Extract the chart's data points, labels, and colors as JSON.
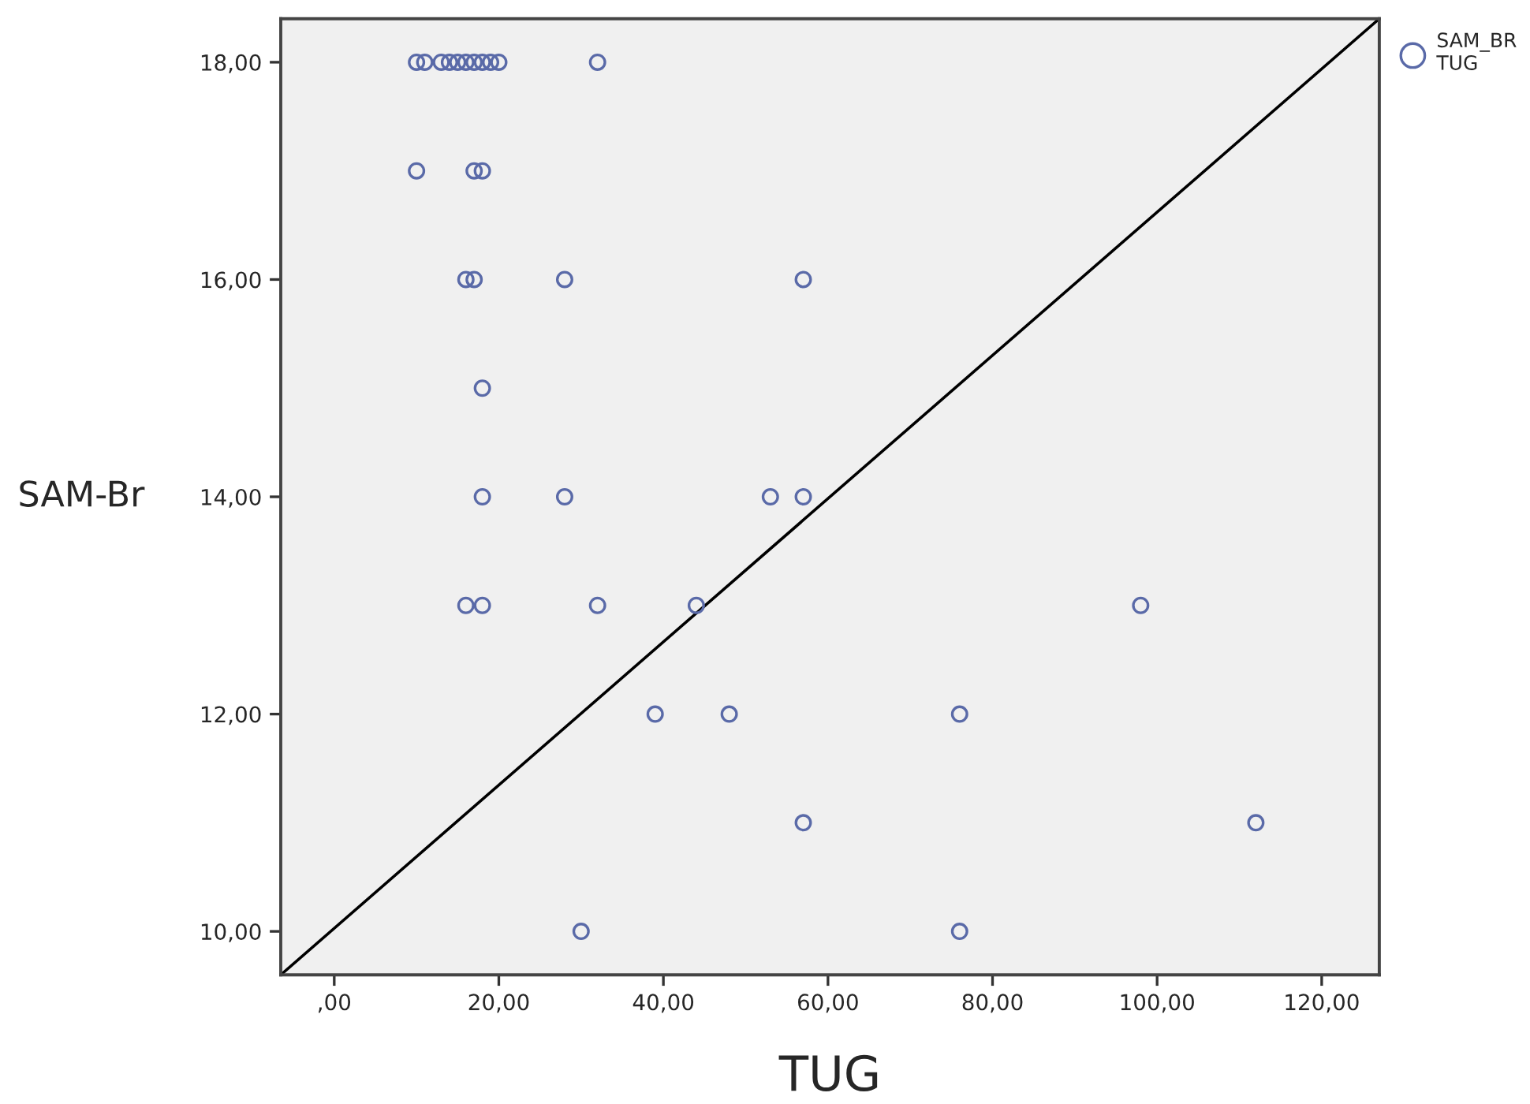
{
  "chart_data": {
    "type": "scatter",
    "xlabel": "TUG",
    "ylabel": "SAM-Br",
    "xlim": [
      -6.5,
      127
    ],
    "ylim": [
      9.6,
      18.4
    ],
    "xticks": [
      {
        "value": 0,
        "label": ",00"
      },
      {
        "value": 20,
        "label": "20,00"
      },
      {
        "value": 40,
        "label": "40,00"
      },
      {
        "value": 60,
        "label": "60,00"
      },
      {
        "value": 80,
        "label": "80,00"
      },
      {
        "value": 100,
        "label": "100,00"
      },
      {
        "value": 120,
        "label": "120,00"
      }
    ],
    "yticks": [
      {
        "value": 10,
        "label": "10,00"
      },
      {
        "value": 12,
        "label": "12,00"
      },
      {
        "value": 14,
        "label": "14,00"
      },
      {
        "value": 16,
        "label": "16,00"
      },
      {
        "value": 18,
        "label": "18,00"
      }
    ],
    "grid": false,
    "legend": "top right",
    "series": [
      {
        "name": "SAM_BR\nTUG",
        "marker": "circle",
        "color": "#5a6aa8",
        "x": [
          10,
          11,
          13,
          14,
          15,
          16,
          17,
          18,
          19,
          20,
          32,
          10,
          17,
          18,
          16,
          17,
          28,
          57,
          18,
          18,
          28,
          53,
          57,
          16,
          18,
          32,
          44,
          98,
          39,
          48,
          76,
          57,
          112,
          30,
          76
        ],
        "values": [
          18,
          18,
          18,
          18,
          18,
          18,
          18,
          18,
          18,
          18,
          18,
          17,
          17,
          17,
          16,
          16,
          16,
          16,
          15,
          14,
          14,
          14,
          14,
          13,
          13,
          13,
          13,
          13,
          12,
          12,
          12,
          11,
          11,
          10,
          10
        ]
      },
      {
        "type": "line",
        "color": "#000000",
        "x": [
          -6.5,
          127
        ],
        "values": [
          9.6,
          18.4
        ]
      }
    ]
  }
}
